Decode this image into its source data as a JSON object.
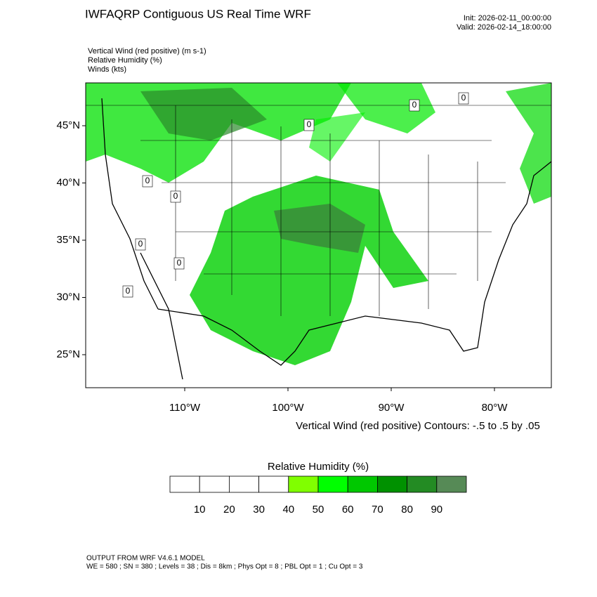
{
  "header": {
    "title": "IWFAQRP Contiguous US Real Time WRF",
    "init": "Init: 2026-02-11_00:00:00",
    "valid": "Valid: 2026-02-14_18:00:00"
  },
  "fields": [
    "Vertical Wind (red positive)   (m s-1)",
    "Relative Humidity   (%)",
    "Winds   (kts)"
  ],
  "map": {
    "lat_ticks": [
      {
        "value": 45,
        "label": "45°N"
      },
      {
        "value": 40,
        "label": "40°N"
      },
      {
        "value": 35,
        "label": "35°N"
      },
      {
        "value": 30,
        "label": "30°N"
      },
      {
        "value": 25,
        "label": "25°N"
      }
    ],
    "lon_ticks": [
      {
        "value": -110,
        "label": "110°W"
      },
      {
        "value": -100,
        "label": "100°W"
      },
      {
        "value": -90,
        "label": "90°W"
      },
      {
        "value": -80,
        "label": "80°W"
      }
    ],
    "contour_labels": [
      "0",
      "0",
      "0",
      "0",
      "0",
      "0",
      "0",
      "0"
    ],
    "contour_note": "Vertical Wind (red positive) Contours: -.5 to .5 by .05"
  },
  "colorbar": {
    "title": "Relative Humidity  (%)",
    "levels": [
      10,
      20,
      30,
      40,
      50,
      60,
      70,
      80,
      90
    ],
    "colors": [
      "#ffffff",
      "#ffffff",
      "#ffffff",
      "#ffffff",
      "#80ff00",
      "#00ff00",
      "#00c800",
      "#009100",
      "#238b23",
      "#568a56"
    ]
  },
  "footer": [
    "OUTPUT FROM WRF V4.6.1 MODEL",
    "WE = 580 ; SN = 380 ; Levels = 38 ; Dis = 8km ; Phys Opt = 8 ; PBL Opt = 1 ; Cu Opt = 3"
  ]
}
